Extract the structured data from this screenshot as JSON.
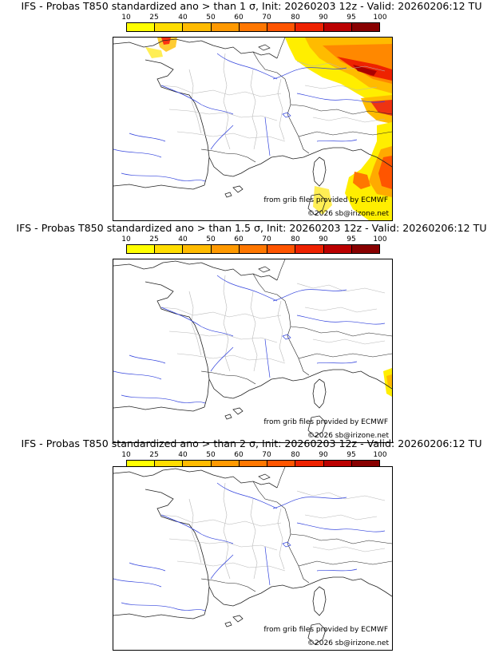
{
  "legend": {
    "ticks": [
      "10",
      "25",
      "40",
      "50",
      "60",
      "70",
      "80",
      "90",
      "95",
      "100"
    ],
    "colors": [
      "#ffff00",
      "#ffdd00",
      "#ffbb00",
      "#ff9900",
      "#ff7700",
      "#ff5500",
      "#ee2200",
      "#bb0000",
      "#880000",
      "#440000"
    ]
  },
  "panels": [
    {
      "title": "IFS - Probas T850  standardized ano > than 1 σ, Init: 20260203 12z - Valid: 20260206:12 TU",
      "credit": "from grib files provided by ECMWF",
      "copyright": "©2026 sb@irizone.net"
    },
    {
      "title": "IFS - Probas T850  standardized ano > than 1.5 σ, Init: 20260203 12z - Valid: 20260206:12 TU",
      "credit": "from grib files provided by ECMWF",
      "copyright": "©2026 sb@irizone.net"
    },
    {
      "title": "IFS - Probas T850  standardized ano > than 2 σ, Init: 20260203 12z - Valid: 20260206:12 TU",
      "credit": "from grib files provided by ECMWF",
      "copyright": "©2026 sb@irizone.net"
    }
  ]
}
